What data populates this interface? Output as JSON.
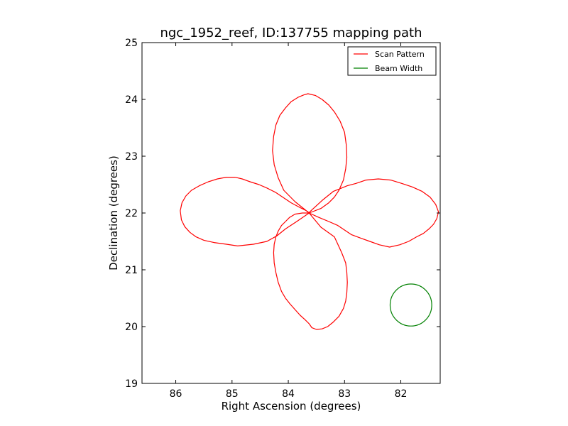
{
  "chart_data": {
    "type": "line",
    "title": "ngc_1952_reef, ID:137755 mapping path",
    "xlabel": "Right Ascension (degrees)",
    "ylabel": "Declination (degrees)",
    "xlim": [
      86.6,
      81.3
    ],
    "ylim": [
      19,
      25
    ],
    "x_ticks": [
      86,
      85,
      84,
      83,
      82
    ],
    "y_ticks": [
      19,
      20,
      21,
      22,
      23,
      24,
      25
    ],
    "x_tick_labels": [
      "86",
      "85",
      "84",
      "83",
      "82"
    ],
    "y_tick_labels": [
      "19",
      "20",
      "21",
      "22",
      "23",
      "24",
      "25"
    ],
    "grid": false,
    "legend_position": "top-right",
    "series": [
      {
        "name": "Scan Pattern",
        "color": "#ff0000",
        "x": [
          83.63,
          83.42,
          83.18,
          83.12,
          83.05,
          82.98,
          82.96,
          82.95,
          82.96,
          82.98,
          83.02,
          83.1,
          83.2,
          83.3,
          83.4,
          83.5,
          83.58,
          83.63,
          83.7,
          83.79,
          83.88,
          83.97,
          84.05,
          84.12,
          84.18,
          84.22,
          84.25,
          84.26,
          84.25,
          84.22,
          84.18,
          84.12,
          84.05,
          83.98,
          83.88,
          83.75,
          83.63,
          83.62,
          83.4,
          83.2,
          83.05,
          82.95,
          82.8,
          82.62,
          82.4,
          82.18,
          81.98,
          81.8,
          81.62,
          81.48,
          81.38,
          81.33,
          81.36,
          81.42,
          81.5,
          81.6,
          81.72,
          81.86,
          82.02,
          82.2,
          82.38,
          82.55,
          82.72,
          82.88,
          83.0,
          83.12,
          83.28,
          83.45,
          83.63,
          83.85,
          84.05,
          84.2,
          84.38,
          84.62,
          84.9,
          85.1,
          85.32,
          85.5,
          85.64,
          85.75,
          85.84,
          85.9,
          85.92,
          85.89,
          85.82,
          85.72,
          85.58,
          85.42,
          85.26,
          85.1,
          84.95,
          84.82,
          84.68,
          84.52,
          84.38,
          84.22,
          84.1,
          83.95,
          83.8,
          83.66,
          83.63,
          83.88,
          84.08,
          84.18,
          84.25,
          84.28,
          84.26,
          84.22,
          84.15,
          84.05,
          83.95,
          83.82,
          83.72,
          83.65,
          83.52,
          83.4,
          83.28,
          83.18,
          83.08,
          83.0,
          82.97,
          82.96,
          82.98,
          83.02,
          83.1,
          83.18,
          83.28,
          83.42,
          83.63
        ],
        "y": [
          22.0,
          21.75,
          21.58,
          21.45,
          21.3,
          21.12,
          20.95,
          20.78,
          20.6,
          20.45,
          20.32,
          20.18,
          20.08,
          20.0,
          19.96,
          19.95,
          19.98,
          20.05,
          20.12,
          20.2,
          20.3,
          20.4,
          20.5,
          20.62,
          20.78,
          20.95,
          21.12,
          21.3,
          21.45,
          21.58,
          21.68,
          21.78,
          21.85,
          21.92,
          21.98,
          22.0,
          22.0,
          22.02,
          22.22,
          22.38,
          22.44,
          22.48,
          22.52,
          22.58,
          22.6,
          22.58,
          22.52,
          22.46,
          22.38,
          22.28,
          22.15,
          22.02,
          21.9,
          21.8,
          21.72,
          21.64,
          21.58,
          21.5,
          21.44,
          21.4,
          21.44,
          21.5,
          21.56,
          21.62,
          21.7,
          21.78,
          21.85,
          21.92,
          22.0,
          21.85,
          21.72,
          21.6,
          21.5,
          21.45,
          21.42,
          21.45,
          21.48,
          21.52,
          21.58,
          21.66,
          21.76,
          21.88,
          22.04,
          22.18,
          22.3,
          22.4,
          22.48,
          22.55,
          22.6,
          22.63,
          22.63,
          22.6,
          22.55,
          22.5,
          22.44,
          22.36,
          22.28,
          22.18,
          22.1,
          22.03,
          22.0,
          22.2,
          22.4,
          22.62,
          22.85,
          23.1,
          23.35,
          23.55,
          23.72,
          23.85,
          23.96,
          24.04,
          24.08,
          24.1,
          24.07,
          24.0,
          23.9,
          23.78,
          23.62,
          23.42,
          23.2,
          22.98,
          22.78,
          22.58,
          22.4,
          22.28,
          22.18,
          22.08,
          22.0
        ]
      },
      {
        "name": "Beam Width",
        "color": "#008000",
        "center": [
          81.82,
          20.38
        ],
        "radius": 0.37
      }
    ]
  }
}
